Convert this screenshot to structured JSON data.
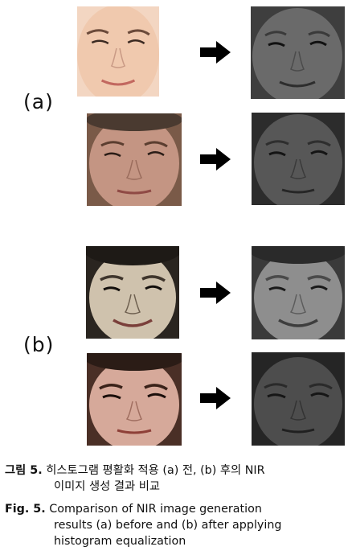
{
  "figure": {
    "label_a": "(a)",
    "label_b": "(b)",
    "caption_ko": {
      "prefix": "그림 5.",
      "line1": "히스토그램 평활화 적용 (a) 전, (b) 후의 NIR",
      "line2": "이미지 생성 결과 비교"
    },
    "caption_en": {
      "prefix": "Fig. 5.",
      "line1": "Comparison of NIR image generation",
      "line2": "results (a) before and (b) after applying",
      "line3": "histogram equalization"
    },
    "panels": [
      {
        "group": "a",
        "row": 1,
        "input_type": "color-face",
        "output_type": "nir-face"
      },
      {
        "group": "a",
        "row": 2,
        "input_type": "color-face",
        "output_type": "nir-face"
      },
      {
        "group": "b",
        "row": 1,
        "input_type": "equalized-color-face",
        "output_type": "nir-face"
      },
      {
        "group": "b",
        "row": 2,
        "input_type": "equalized-color-face",
        "output_type": "nir-face"
      }
    ]
  }
}
